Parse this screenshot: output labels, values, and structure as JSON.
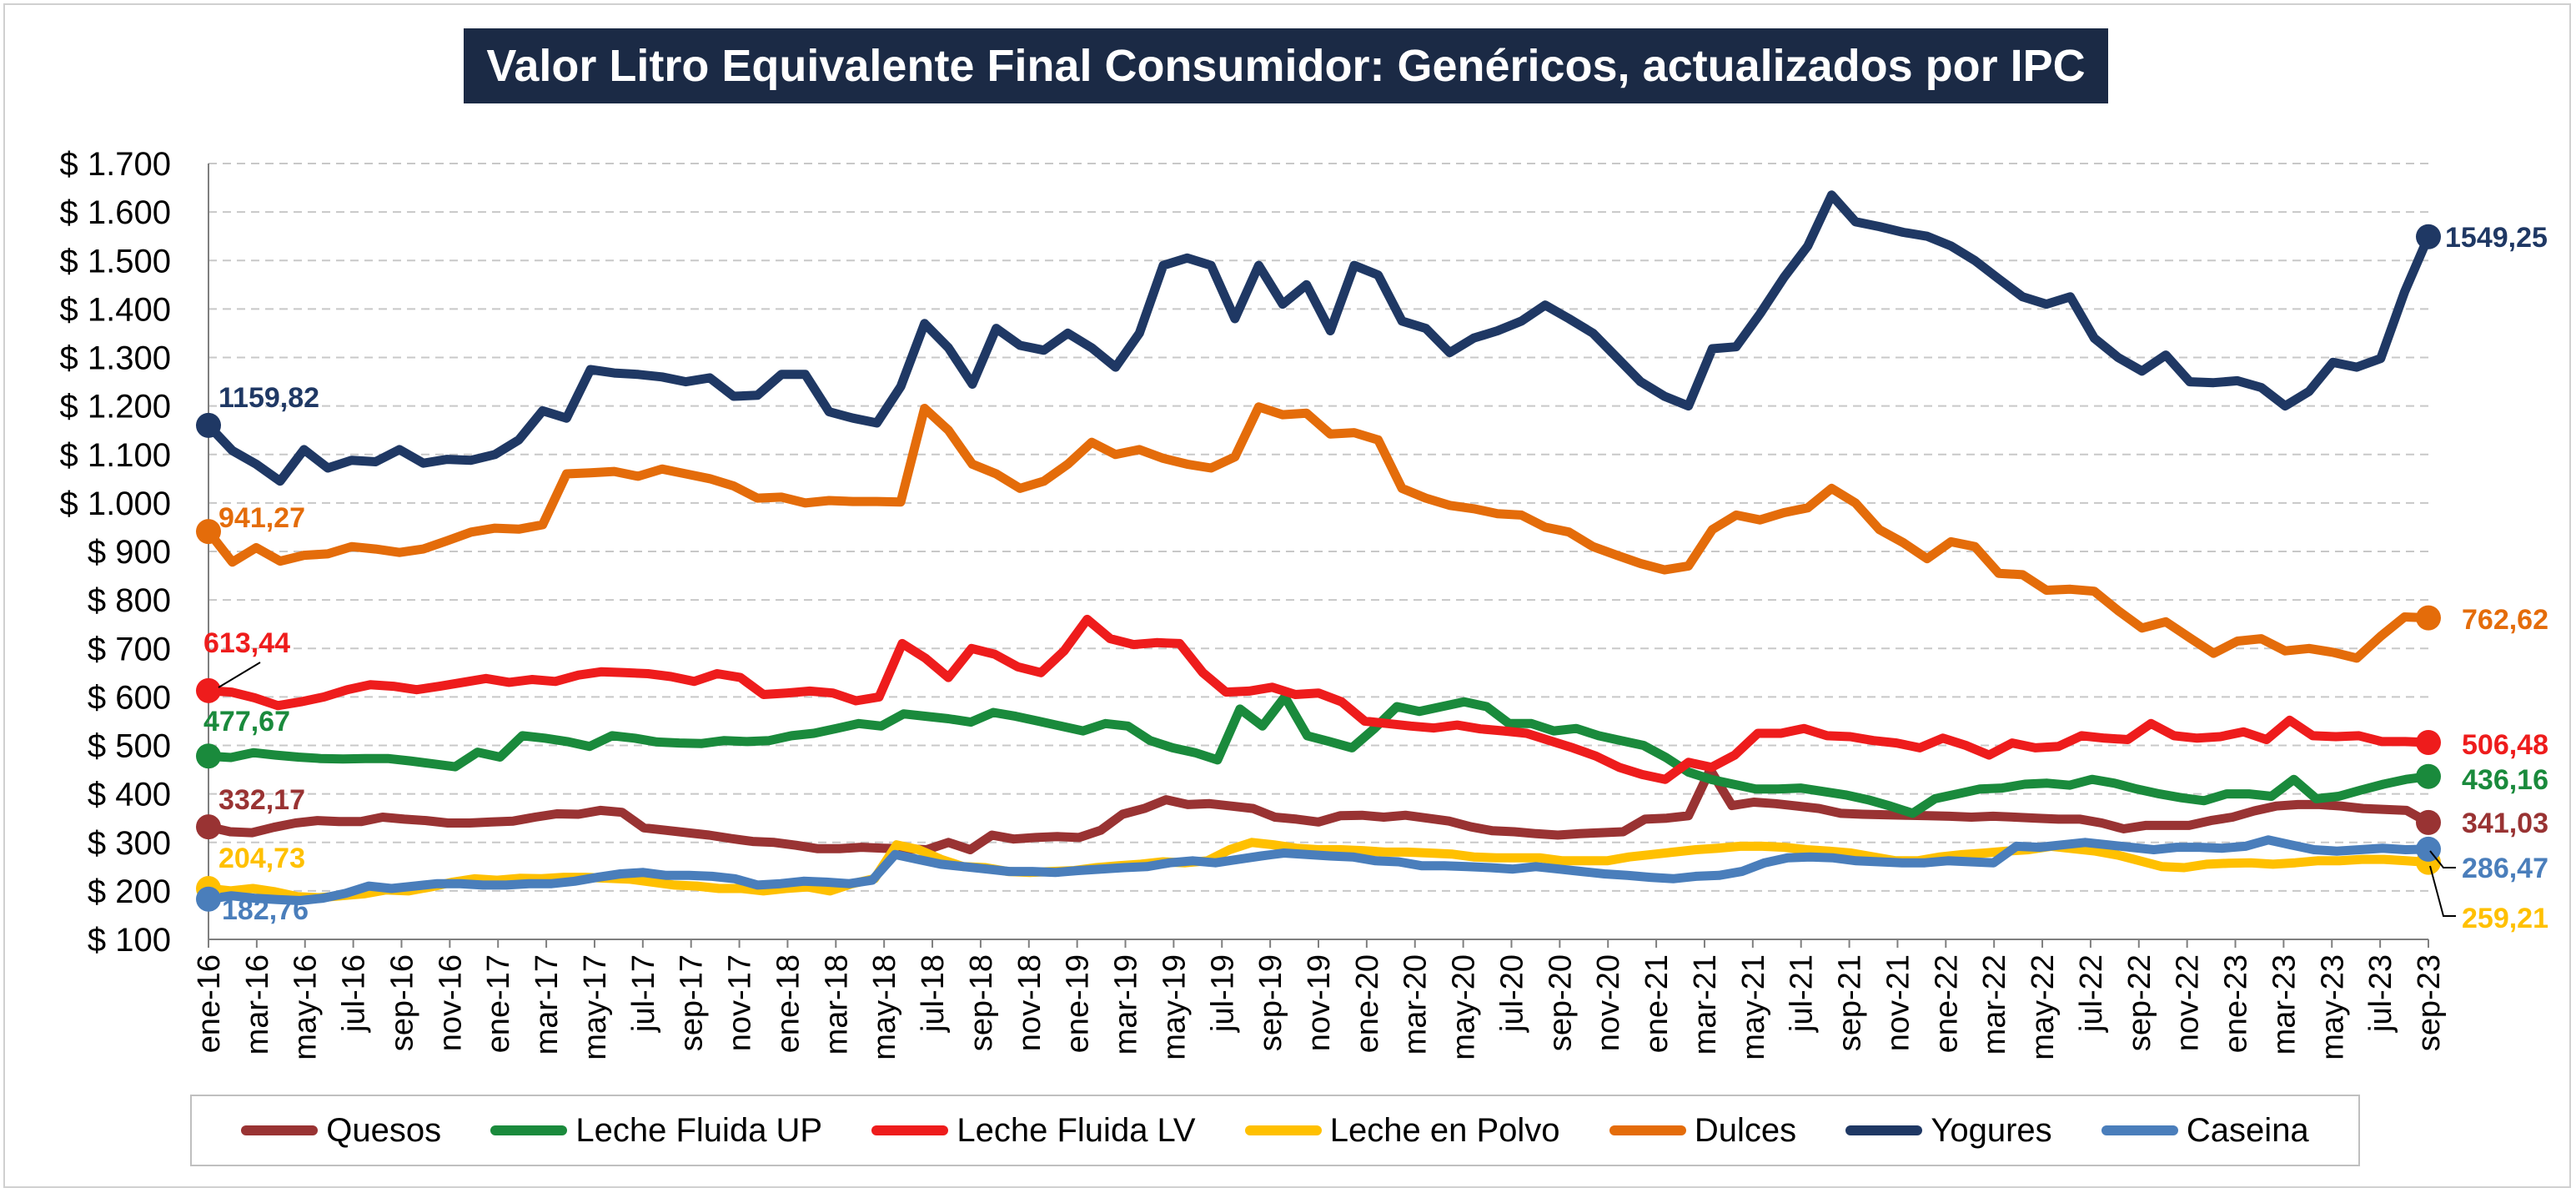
{
  "chart_data": {
    "type": "line",
    "title": "Valor Litro Equivalente Final Consumidor: Genéricos, actualizados por IPC",
    "xlabel": "",
    "ylabel": "",
    "ylim": [
      100,
      1700
    ],
    "yticks": [
      100,
      200,
      300,
      400,
      500,
      600,
      700,
      800,
      900,
      1000,
      1100,
      1200,
      1300,
      1400,
      1500,
      1600,
      1700
    ],
    "ytick_labels": [
      "$ 100",
      "$ 200",
      "$ 300",
      "$ 400",
      "$ 500",
      "$ 600",
      "$ 700",
      "$ 800",
      "$ 900",
      "$ 1.000",
      "$ 1.100",
      "$ 1.200",
      "$ 1.300",
      "$ 1.400",
      "$ 1.500",
      "$ 1.600",
      "$ 1.700"
    ],
    "x_tick_labels": [
      "ene-16",
      "mar-16",
      "may-16",
      "jul-16",
      "sep-16",
      "nov-16",
      "ene-17",
      "mar-17",
      "may-17",
      "jul-17",
      "sep-17",
      "nov-17",
      "ene-18",
      "mar-18",
      "may-18",
      "jul-18",
      "sep-18",
      "nov-18",
      "ene-19",
      "mar-19",
      "may-19",
      "jul-19",
      "sep-19",
      "nov-19",
      "ene-20",
      "mar-20",
      "may-20",
      "jul-20",
      "sep-20",
      "nov-20",
      "ene-21",
      "mar-21",
      "may-21",
      "jul-21",
      "sep-21",
      "nov-21",
      "ene-22",
      "mar-22",
      "may-22",
      "jul-22",
      "sep-22",
      "nov-22",
      "ene-23",
      "mar-23",
      "may-23",
      "jul-23",
      "sep-23"
    ],
    "grid": "horizontal dashed",
    "legend_position": "bottom",
    "series": [
      {
        "name": "Quesos",
        "color": "#993333",
        "start_label": "332,17",
        "end_label": "341,03",
        "values": [
          332,
          322,
          320,
          331,
          340,
          345,
          343,
          343,
          352,
          348,
          345,
          340,
          340,
          342,
          344,
          352,
          359,
          358,
          366,
          362,
          330,
          325,
          320,
          315,
          308,
          302,
          300,
          294,
          287,
          287,
          290,
          288,
          287,
          285,
          300,
          285,
          315,
          307,
          310,
          312,
          310,
          325,
          358,
          370,
          388,
          378,
          380,
          375,
          370,
          352,
          348,
          342,
          355,
          356,
          352,
          356,
          350,
          344,
          332,
          324,
          322,
          318,
          315,
          318,
          320,
          322,
          348,
          350,
          355,
          450,
          376,
          383,
          380,
          375,
          370,
          360,
          358,
          357,
          356,
          355,
          354,
          352,
          354,
          352,
          350,
          348,
          348,
          340,
          328,
          335,
          335,
          335,
          345,
          352,
          365,
          375,
          378,
          378,
          375,
          370,
          368,
          366,
          341
        ]
      },
      {
        "name": "Leche Fluida UP",
        "color": "#1a8a3c",
        "start_label": "477,67",
        "end_label": "436,16",
        "values": [
          478,
          475,
          485,
          480,
          476,
          473,
          472,
          473,
          473,
          468,
          462,
          456,
          486,
          476,
          520,
          515,
          508,
          498,
          520,
          515,
          507,
          505,
          504,
          510,
          508,
          510,
          520,
          525,
          535,
          545,
          540,
          565,
          560,
          555,
          548,
          568,
          560,
          550,
          540,
          530,
          545,
          540,
          510,
          495,
          485,
          470,
          575,
          540,
          600,
          520,
          508,
          495,
          535,
          580,
          570,
          580,
          590,
          580,
          545,
          545,
          530,
          535,
          520,
          510,
          500,
          475,
          445,
          430,
          420,
          410,
          410,
          412,
          405,
          398,
          388,
          375,
          360,
          390,
          400,
          410,
          412,
          420,
          422,
          418,
          430,
          422,
          410,
          400,
          392,
          386,
          400,
          400,
          395,
          430,
          390,
          395,
          408,
          420,
          430,
          436
        ]
      },
      {
        "name": "Leche Fluida LV",
        "color": "#ee1c1c",
        "start_label": "613,44",
        "end_label": "506,48",
        "values": [
          613,
          610,
          598,
          582,
          590,
          600,
          615,
          625,
          622,
          615,
          622,
          630,
          638,
          630,
          636,
          632,
          645,
          652,
          650,
          648,
          642,
          632,
          648,
          640,
          605,
          608,
          612,
          608,
          592,
          600,
          710,
          680,
          640,
          700,
          688,
          662,
          650,
          695,
          760,
          720,
          708,
          712,
          710,
          650,
          610,
          612,
          620,
          605,
          608,
          590,
          550,
          545,
          540,
          536,
          542,
          534,
          530,
          525,
          510,
          495,
          478,
          455,
          440,
          430,
          465,
          455,
          480,
          525,
          525,
          535,
          520,
          518,
          510,
          505,
          495,
          515,
          500,
          480,
          505,
          495,
          498,
          520,
          515,
          512,
          545,
          520,
          515,
          518,
          528,
          512,
          552,
          520,
          518,
          520,
          508,
          508,
          506
        ]
      },
      {
        "name": "Leche en Polvo",
        "color": "#ffc000",
        "start_label": "204,73",
        "end_label": "259,21",
        "values": [
          205,
          200,
          205,
          198,
          188,
          186,
          190,
          194,
          202,
          200,
          208,
          218,
          225,
          222,
          226,
          225,
          228,
          228,
          226,
          224,
          218,
          212,
          210,
          205,
          205,
          200,
          205,
          208,
          200,
          215,
          225,
          295,
          285,
          265,
          250,
          248,
          240,
          238,
          240,
          242,
          248,
          252,
          255,
          260,
          258,
          262,
          285,
          300,
          295,
          288,
          285,
          285,
          283,
          280,
          280,
          278,
          276,
          270,
          268,
          268,
          268,
          262,
          262,
          262,
          270,
          275,
          280,
          285,
          288,
          292,
          292,
          290,
          285,
          282,
          278,
          270,
          262,
          262,
          270,
          275,
          278,
          282,
          285,
          292,
          287,
          282,
          274,
          262,
          250,
          248,
          255,
          257,
          258,
          255,
          258,
          262,
          262,
          265,
          265,
          262,
          259
        ]
      },
      {
        "name": "Dulces",
        "color": "#e46c0a",
        "start_label": "941,27",
        "end_label": "762,62",
        "values": [
          941,
          878,
          908,
          880,
          892,
          895,
          910,
          905,
          898,
          905,
          922,
          940,
          948,
          946,
          955,
          1060,
          1062,
          1065,
          1055,
          1070,
          1060,
          1050,
          1035,
          1010,
          1012,
          1000,
          1005,
          1003,
          1003,
          1002,
          1195,
          1150,
          1080,
          1060,
          1030,
          1045,
          1080,
          1125,
          1100,
          1110,
          1092,
          1080,
          1072,
          1095,
          1198,
          1182,
          1185,
          1142,
          1145,
          1130,
          1030,
          1010,
          995,
          988,
          978,
          975,
          950,
          940,
          910,
          892,
          875,
          862,
          870,
          945,
          975,
          965,
          980,
          990,
          1030,
          1000,
          945,
          918,
          885,
          920,
          910,
          855,
          852,
          820,
          822,
          818,
          778,
          742,
          755,
          722,
          690,
          715,
          720,
          695,
          700,
          692,
          680,
          725,
          765,
          763
        ]
      },
      {
        "name": "Yogures",
        "color": "#1f3864",
        "start_label": "1159,82",
        "end_label": "1549,25",
        "values": [
          1160,
          1108,
          1080,
          1045,
          1110,
          1072,
          1088,
          1085,
          1110,
          1082,
          1090,
          1088,
          1100,
          1130,
          1190,
          1175,
          1275,
          1268,
          1265,
          1260,
          1250,
          1258,
          1220,
          1222,
          1265,
          1265,
          1188,
          1175,
          1165,
          1240,
          1370,
          1320,
          1245,
          1360,
          1325,
          1315,
          1350,
          1320,
          1280,
          1350,
          1490,
          1505,
          1490,
          1380,
          1490,
          1410,
          1450,
          1355,
          1490,
          1470,
          1375,
          1360,
          1310,
          1340,
          1355,
          1375,
          1408,
          1380,
          1350,
          1300,
          1250,
          1220,
          1200,
          1318,
          1322,
          1390,
          1465,
          1530,
          1635,
          1580,
          1570,
          1558,
          1550,
          1530,
          1500,
          1462,
          1425,
          1410,
          1425,
          1340,
          1300,
          1272,
          1305,
          1250,
          1248,
          1252,
          1238,
          1200,
          1230,
          1290,
          1280,
          1298,
          1435,
          1549
        ]
      },
      {
        "name": "Caseina",
        "color": "#4a7ebb",
        "start_label": "182,76",
        "end_label": "286,47",
        "values": [
          183,
          190,
          185,
          182,
          180,
          185,
          195,
          210,
          205,
          210,
          215,
          215,
          212,
          212,
          215,
          215,
          220,
          228,
          235,
          238,
          232,
          232,
          230,
          225,
          212,
          215,
          220,
          218,
          215,
          222,
          275,
          265,
          255,
          250,
          245,
          240,
          240,
          238,
          242,
          245,
          248,
          250,
          258,
          262,
          258,
          265,
          272,
          278,
          275,
          272,
          270,
          262,
          260,
          252,
          252,
          250,
          248,
          245,
          250,
          245,
          240,
          235,
          232,
          228,
          225,
          230,
          232,
          240,
          258,
          268,
          270,
          268,
          262,
          260,
          258,
          258,
          262,
          260,
          258,
          292,
          290,
          295,
          300,
          295,
          290,
          285,
          290,
          290,
          288,
          292,
          305,
          295,
          285,
          282,
          285,
          288,
          285,
          286
        ]
      }
    ]
  }
}
